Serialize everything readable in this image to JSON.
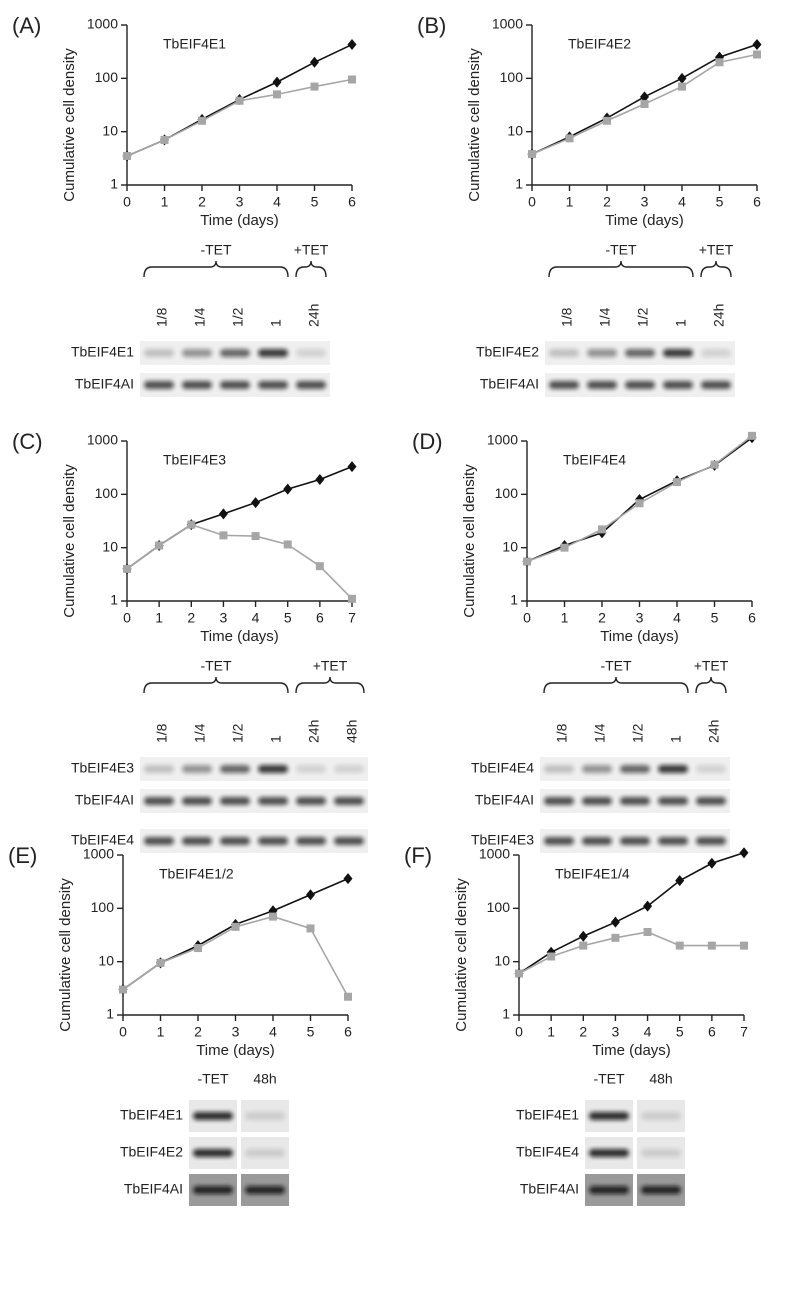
{
  "chart_data": [
    {
      "type": "line",
      "label": "(A)",
      "title": "TbEIF4E1",
      "x_label": "Time (days)",
      "y_label": "Cumulative cell density",
      "x": [
        0,
        1,
        2,
        3,
        4,
        5,
        6
      ],
      "xlim": [
        0,
        6
      ],
      "xticks": [
        0,
        1,
        2,
        3,
        4,
        5,
        6
      ],
      "ylim": [
        1,
        1000
      ],
      "yticks": [
        1,
        10,
        100,
        1000
      ],
      "log_y": true,
      "series": [
        {
          "color": "#111111",
          "marker": "diamond",
          "values": [
            3.5,
            7,
            17,
            40,
            85,
            200,
            430
          ]
        },
        {
          "color": "#a6a6a6",
          "marker": "square",
          "values": [
            3.5,
            7,
            16,
            38,
            50,
            70,
            95
          ]
        }
      ],
      "blot": {
        "groups": [
          {
            "label": "-TET",
            "lanes": [
              "1/8",
              "1/4",
              "1/2",
              "1"
            ]
          },
          {
            "label": "+TET",
            "lanes": [
              "24h"
            ]
          }
        ],
        "rows": [
          "TbEIF4E1",
          "TbEIF4AI"
        ]
      }
    },
    {
      "type": "line",
      "label": "(B)",
      "title": "TbEIF4E2",
      "x_label": "Time (days)",
      "y_label": "Cumulative cell density",
      "x": [
        0,
        1,
        2,
        3,
        4,
        5,
        6
      ],
      "xlim": [
        0,
        6
      ],
      "xticks": [
        0,
        1,
        2,
        3,
        4,
        5,
        6
      ],
      "ylim": [
        1,
        1000
      ],
      "yticks": [
        1,
        10,
        100,
        1000
      ],
      "log_y": true,
      "series": [
        {
          "color": "#111111",
          "marker": "diamond",
          "values": [
            3.8,
            8,
            18,
            45,
            100,
            250,
            430
          ]
        },
        {
          "color": "#a6a6a6",
          "marker": "square",
          "values": [
            3.8,
            7.5,
            16,
            33,
            70,
            200,
            280
          ]
        }
      ],
      "blot": {
        "groups": [
          {
            "label": "-TET",
            "lanes": [
              "1/8",
              "1/4",
              "1/2",
              "1"
            ]
          },
          {
            "label": "+TET",
            "lanes": [
              "24h"
            ]
          }
        ],
        "rows": [
          "TbEIF4E2",
          "TbEIF4AI"
        ]
      }
    },
    {
      "type": "line",
      "label": "(C)",
      "title": "TbEIF4E3",
      "x_label": "Time (days)",
      "y_label": "Cumulative cell density",
      "x": [
        0,
        1,
        2,
        3,
        4,
        5,
        6,
        7
      ],
      "xlim": [
        0,
        7
      ],
      "xticks": [
        0,
        1,
        2,
        3,
        4,
        5,
        6,
        7
      ],
      "ylim": [
        1,
        1000
      ],
      "yticks": [
        1,
        10,
        100,
        1000
      ],
      "log_y": true,
      "series": [
        {
          "color": "#111111",
          "marker": "diamond",
          "values": [
            4,
            11,
            27,
            43,
            70,
            125,
            190,
            330
          ]
        },
        {
          "color": "#a6a6a6",
          "marker": "square",
          "values": [
            4,
            11,
            27,
            17,
            16.5,
            11.5,
            4.5,
            1.1
          ]
        }
      ],
      "blot": {
        "groups": [
          {
            "label": "-TET",
            "lanes": [
              "1/8",
              "1/4",
              "1/2",
              "1"
            ]
          },
          {
            "label": "+TET",
            "lanes": [
              "24h",
              "48h"
            ]
          }
        ],
        "rows": [
          "TbEIF4E3",
          "TbEIF4AI",
          "TbEIF4E4"
        ]
      }
    },
    {
      "type": "line",
      "label": "(D)",
      "title": "TbEIF4E4",
      "x_label": "Time (days)",
      "y_label": "Cumulative cell density",
      "x": [
        0,
        1,
        2,
        3,
        4,
        5,
        6
      ],
      "xlim": [
        0,
        6
      ],
      "xticks": [
        0,
        1,
        2,
        3,
        4,
        5,
        6
      ],
      "ylim": [
        1,
        1000
      ],
      "yticks": [
        1,
        10,
        100,
        1000
      ],
      "log_y": true,
      "series": [
        {
          "color": "#111111",
          "marker": "diamond",
          "values": [
            5.5,
            11,
            19,
            80,
            180,
            350,
            1150
          ]
        },
        {
          "color": "#a6a6a6",
          "marker": "square",
          "values": [
            5.5,
            10,
            22,
            68,
            170,
            360,
            1250
          ]
        }
      ],
      "blot": {
        "groups": [
          {
            "label": "-TET",
            "lanes": [
              "1/8",
              "1/4",
              "1/2",
              "1"
            ]
          },
          {
            "label": "+TET",
            "lanes": [
              "24h"
            ]
          }
        ],
        "rows": [
          "TbEIF4E4",
          "TbEIF4AI",
          "TbEIF4E3"
        ]
      }
    },
    {
      "type": "line",
      "label": "(E)",
      "title": "TbEIF4E1/2",
      "x_label": "Time (days)",
      "y_label": "Cumulative cell density",
      "x": [
        0,
        1,
        2,
        3,
        4,
        5,
        6
      ],
      "xlim": [
        0,
        6
      ],
      "xticks": [
        0,
        1,
        2,
        3,
        4,
        5,
        6
      ],
      "ylim": [
        1,
        1000
      ],
      "yticks": [
        1,
        10,
        100,
        1000
      ],
      "log_y": true,
      "series": [
        {
          "color": "#111111",
          "marker": "diamond",
          "values": [
            3,
            9.5,
            20,
            50,
            90,
            180,
            360
          ]
        },
        {
          "color": "#a6a6a6",
          "marker": "square",
          "values": [
            3,
            9.5,
            18,
            45,
            70,
            42,
            2.2
          ]
        }
      ],
      "blot": {
        "columns": [
          "-TET",
          "48h"
        ],
        "rows": [
          "TbEIF4E1",
          "TbEIF4E2",
          "TbEIF4AI"
        ]
      }
    },
    {
      "type": "line",
      "label": "(F)",
      "title": "TbEIF4E1/4",
      "x_label": "Time (days)",
      "y_label": "Cumulative cell density",
      "x": [
        0,
        1,
        2,
        3,
        4,
        5,
        6,
        7
      ],
      "xlim": [
        0,
        7
      ],
      "xticks": [
        0,
        1,
        2,
        3,
        4,
        5,
        6,
        7
      ],
      "ylim": [
        1,
        1000
      ],
      "yticks": [
        1,
        10,
        100,
        1000
      ],
      "log_y": true,
      "series": [
        {
          "color": "#111111",
          "marker": "diamond",
          "values": [
            6,
            15,
            30,
            55,
            110,
            330,
            700,
            1100
          ]
        },
        {
          "color": "#a6a6a6",
          "marker": "square",
          "values": [
            6,
            12.5,
            20,
            28,
            36,
            20,
            20,
            20
          ]
        }
      ],
      "blot": {
        "columns": [
          "-TET",
          "48h"
        ],
        "rows": [
          "TbEIF4E1",
          "TbEIF4E4",
          "TbEIF4AI"
        ]
      }
    }
  ]
}
